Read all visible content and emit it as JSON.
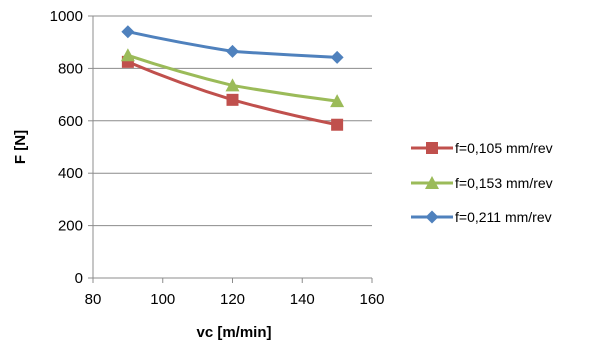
{
  "chart_data": {
    "type": "line",
    "title": "",
    "xlabel": "vc [m/min]",
    "ylabel": "F [N]",
    "xlim": [
      80,
      160
    ],
    "ylim": [
      0,
      1000
    ],
    "x_ticks": [
      80,
      100,
      120,
      140,
      160
    ],
    "y_ticks": [
      0,
      200,
      400,
      600,
      800,
      1000
    ],
    "grid": "horizontal major",
    "legend_position": "right",
    "series": [
      {
        "name": "f=0,105 mm/rev",
        "color": "#c0504d",
        "marker": "square",
        "x": [
          90,
          120,
          150
        ],
        "y": [
          825,
          680,
          585
        ]
      },
      {
        "name": "f=0,153 mm/rev",
        "color": "#9bbb59",
        "marker": "triangle",
        "x": [
          90,
          120,
          150
        ],
        "y": [
          850,
          735,
          675
        ]
      },
      {
        "name": "f=0,211 mm/rev",
        "color": "#4f81bd",
        "marker": "diamond",
        "x": [
          90,
          120,
          150
        ],
        "y": [
          940,
          865,
          842
        ]
      }
    ]
  }
}
